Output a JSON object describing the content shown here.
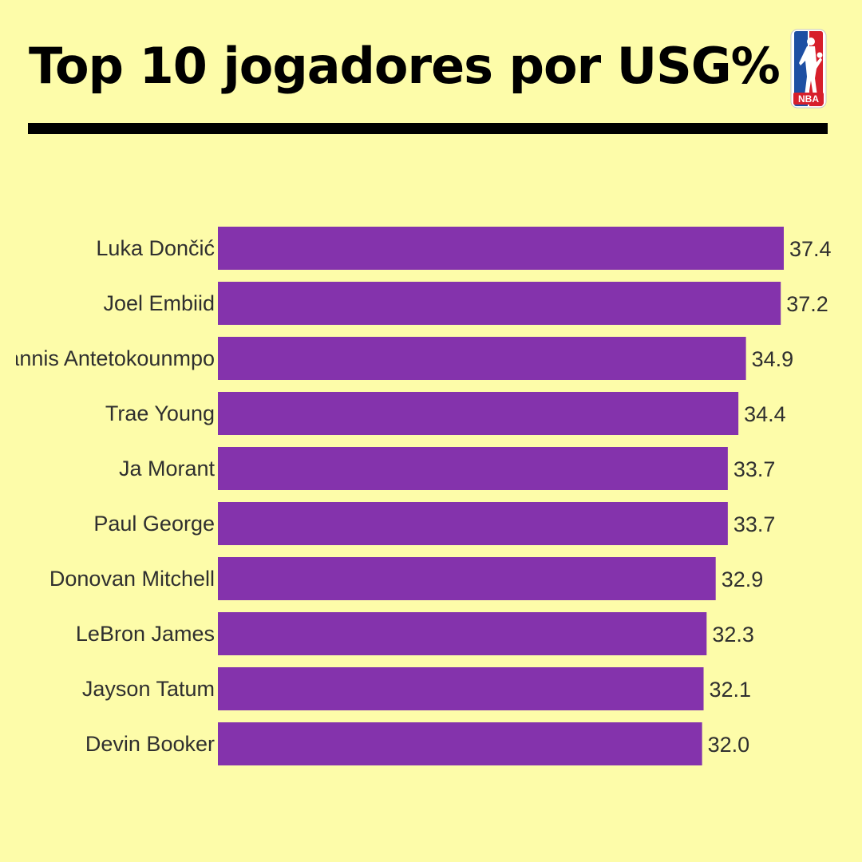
{
  "page": {
    "title": "Top 10 jogadores por USG%",
    "logo_text": "NBA",
    "background": "#fdfca9"
  },
  "chart_data": {
    "type": "bar",
    "orientation": "horizontal",
    "categories": [
      "Luka Dončić",
      "Joel Embiid",
      "Giannis Antetokounmpo",
      "Trae Young",
      "Ja Morant",
      "Paul George",
      "Donovan Mitchell",
      "LeBron James",
      "Jayson Tatum",
      "Devin Booker"
    ],
    "values": [
      37.4,
      37.2,
      34.9,
      34.4,
      33.7,
      33.7,
      32.9,
      32.3,
      32.1,
      32.0
    ],
    "value_labels": [
      "37.4",
      "37.2",
      "34.9",
      "34.4",
      "33.7",
      "33.7",
      "32.9",
      "32.3",
      "32.1",
      "32.0"
    ],
    "xlim": [
      0,
      37.4
    ],
    "grid": false,
    "bar_color": "#8433ac"
  }
}
